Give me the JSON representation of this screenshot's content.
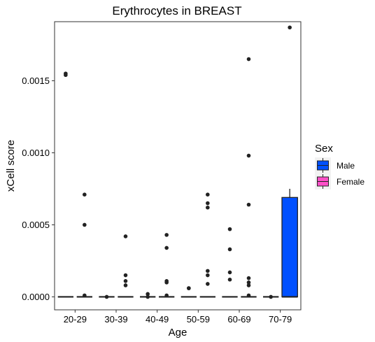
{
  "chart_data": {
    "type": "box",
    "title": "Erythrocytes in BREAST",
    "xlabel": "Age",
    "ylabel": "xCell score",
    "categories": [
      "20-29",
      "30-39",
      "40-49",
      "50-59",
      "60-69",
      "70-79"
    ],
    "y_ticks": [
      "0.0000",
      "0.0005",
      "0.0010",
      "0.0015"
    ],
    "ylim": [
      -9e-05,
      0.00191
    ],
    "grid": false,
    "legend": {
      "title": "Sex",
      "position": "right",
      "entries": [
        {
          "label": "Male",
          "color": "#0050ff"
        },
        {
          "label": "Female",
          "color": "#ff4fc8"
        }
      ]
    },
    "series": [
      {
        "name": "Male",
        "color": "#0050ff",
        "boxes": [
          {
            "category": "20-29",
            "min": 0,
            "q1": 0,
            "median": 0,
            "q3": 0,
            "max": 0,
            "outliers": [
              0.00155,
              0.00154
            ]
          },
          {
            "category": "30-39",
            "min": 0,
            "q1": 0,
            "median": 0,
            "q3": 0,
            "max": 0,
            "outliers": [
              0
            ]
          },
          {
            "category": "40-49",
            "min": 0,
            "q1": 0,
            "median": 0,
            "q3": 0,
            "max": 0,
            "outliers": [
              2e-05,
              0
            ]
          },
          {
            "category": "50-59",
            "min": 0,
            "q1": 0,
            "median": 0,
            "q3": 0,
            "max": 0,
            "outliers": [
              6e-05,
              6e-05
            ]
          },
          {
            "category": "60-69",
            "min": 0,
            "q1": 0,
            "median": 0,
            "q3": 0,
            "max": 0,
            "outliers": [
              0.00047,
              0.00033,
              0.00017,
              0.00012
            ]
          },
          {
            "category": "70-79",
            "min": 0,
            "q1": 0,
            "median": 0,
            "q3": 0,
            "max": 0,
            "outliers": [
              0
            ]
          }
        ]
      },
      {
        "name": "Female",
        "color": "#ff4fc8",
        "boxes": [
          {
            "category": "20-29",
            "min": 0,
            "q1": 0,
            "median": 0,
            "q3": 0,
            "max": 0,
            "outliers": [
              0.00071,
              0.0005,
              1e-05
            ]
          },
          {
            "category": "30-39",
            "min": 0,
            "q1": 0,
            "median": 0,
            "q3": 0,
            "max": 0,
            "outliers": [
              0.00042,
              0.00015,
              0.00011,
              8e-05
            ]
          },
          {
            "category": "40-49",
            "min": 0,
            "q1": 0,
            "median": 0,
            "q3": 0,
            "max": 0,
            "outliers": [
              0.00043,
              0.00034,
              0.00011,
              0.0001,
              1e-05
            ]
          },
          {
            "category": "50-59",
            "min": 0,
            "q1": 0,
            "median": 0,
            "q3": 0,
            "max": 0,
            "outliers": [
              0.00071,
              0.00065,
              0.00062,
              0.00018,
              0.00015,
              9e-05
            ]
          },
          {
            "category": "60-69",
            "min": 0,
            "q1": 0,
            "median": 0,
            "q3": 0,
            "max": 0,
            "outliers": [
              0.00165,
              0.00098,
              0.00064,
              0.00013,
              0.0001,
              8e-05,
              1e-05
            ]
          },
          {
            "category": "70-79",
            "color": "#0050ff",
            "min": 0,
            "q1": 0,
            "median": 0,
            "q3": 0.00069,
            "max": 0.00075,
            "outliers": [
              0.00187
            ]
          }
        ]
      }
    ]
  }
}
